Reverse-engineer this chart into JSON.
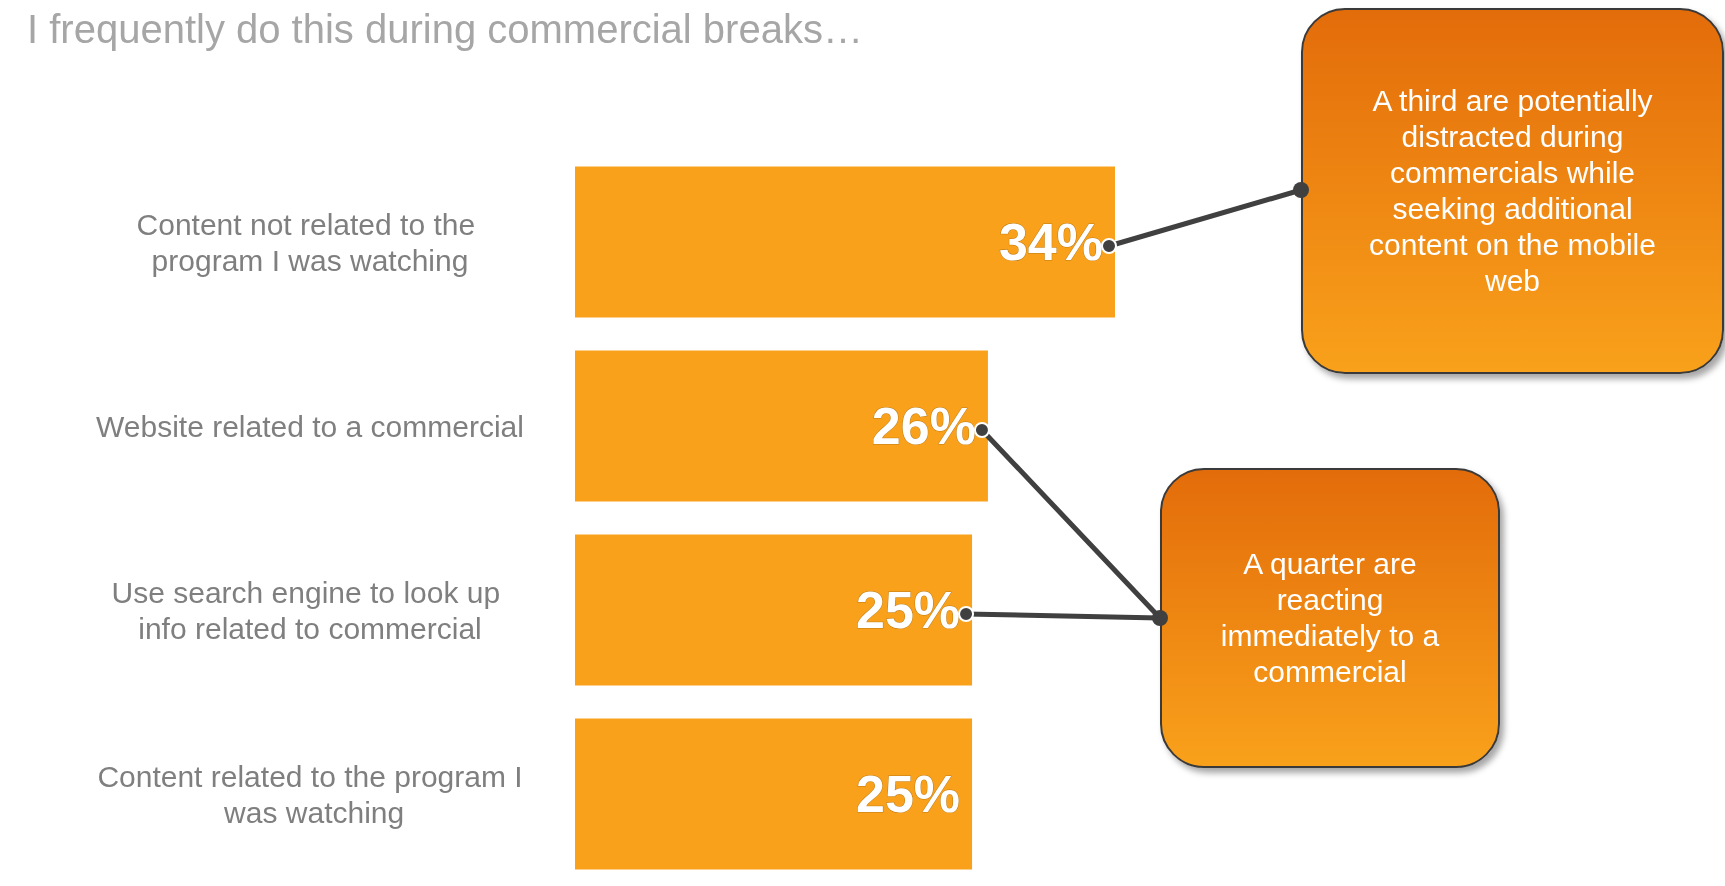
{
  "chart_data": {
    "type": "bar",
    "orientation": "horizontal",
    "title": "I frequently do this during commercial breaks…",
    "categories": [
      "Content not related to the program I was watching",
      "Website related to a commercial",
      "Use search engine to look up info related to commercial",
      "Content related to the program I was watching"
    ],
    "values": [
      34,
      26,
      25,
      25
    ],
    "color": "#f9a11b",
    "value_labels": [
      "34%",
      "26%",
      "25%",
      "25%"
    ],
    "annotations": [
      "A third are potentially distracted during commercials while seeking additional content on the mobile web",
      "A quarter are reacting immediately to a commercial"
    ]
  }
}
